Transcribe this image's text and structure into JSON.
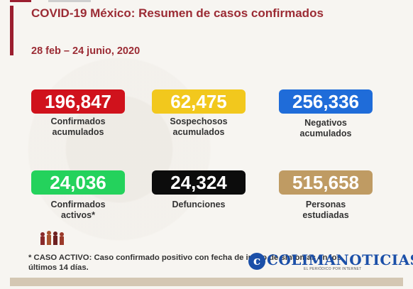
{
  "header": {
    "title": "COVID-19 México: Resumen de casos confirmados",
    "dates": "28 feb – 24 junio, 2020"
  },
  "stats": [
    {
      "value": "196,847",
      "label_line1": "Confirmados",
      "label_line2": "acumulados",
      "color": "#d0121c"
    },
    {
      "value": "62,475",
      "label_line1": "Sospechosos",
      "label_line2": "acumulados",
      "color": "#f2c81d"
    },
    {
      "value": "256,336",
      "label_line1": "Negativos",
      "label_line2": "acumulados",
      "color": "#1f6cd9"
    },
    {
      "value": "24,036",
      "label_line1": "Confirmados",
      "label_line2": "activos*",
      "color": "#24d25c"
    },
    {
      "value": "24,324",
      "label_line1": "Defunciones",
      "label_line2": "",
      "color": "#0c0c0c"
    },
    {
      "value": "515,658",
      "label_line1": "Personas",
      "label_line2": "estudiadas",
      "color": "#bf9b63"
    }
  ],
  "footnote": {
    "line1": "* CASO ACTIVO: Caso confirmado positivo con fecha de inicio de síntomas en los",
    "line2": "últimos 14 días."
  },
  "logo": {
    "mark": "c",
    "text": "COLIMANOTICIAS",
    "tagline": "EL PERIÓDICO POR INTERNET"
  }
}
